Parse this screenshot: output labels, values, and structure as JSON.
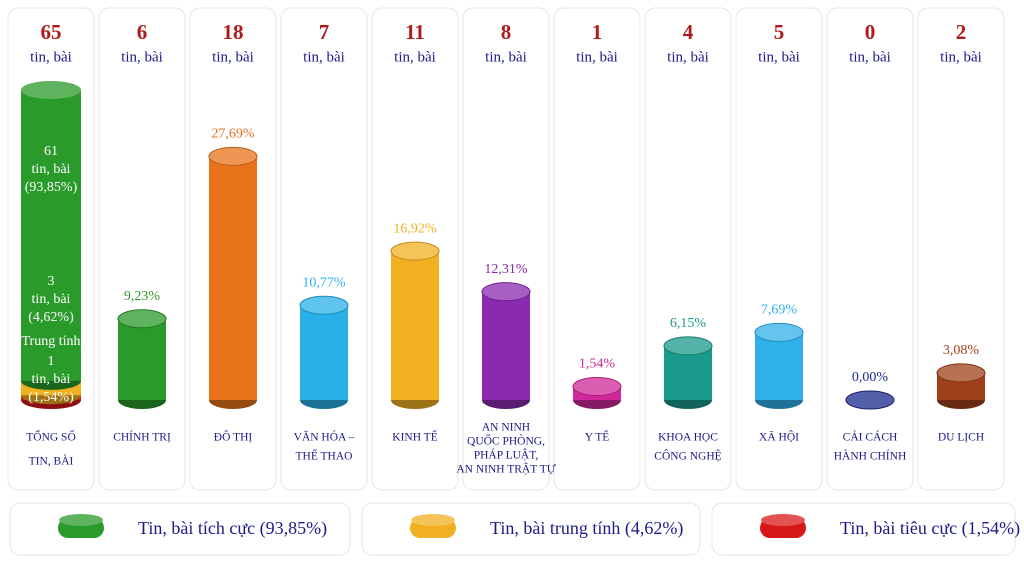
{
  "chart_data": {
    "type": "bar",
    "unit": "tin, bài",
    "total": {
      "label": [
        "TỔNG SỐ",
        "TIN, BÀI"
      ],
      "count": 65,
      "segments": [
        {
          "name": "Tin, bài tích cực (93,85%)",
          "color": "#2a9a2a",
          "count": 61,
          "value": 93.85,
          "value_label": "(93,85%)"
        },
        {
          "name": "Tin, bài trung tính (4,62%)",
          "short_name": "Trung tính",
          "color": "#f0b020",
          "count": 3,
          "value": 4.62,
          "value_label": "(4,62%)"
        },
        {
          "name": "Tin, bài tiêu cực (1,54%)",
          "color": "#d81818",
          "count": 1,
          "value": 1.54,
          "value_label": "(1,54%)"
        }
      ]
    },
    "categories": [
      [
        "CHÍNH TRỊ"
      ],
      [
        "ĐÔ THỊ"
      ],
      [
        "VĂN HÓA –",
        "THỂ THAO"
      ],
      [
        "KINH TẾ"
      ],
      [
        "AN NINH",
        "QUỐC PHÒNG,",
        "PHÁP LUẬT,",
        "AN NINH TRẬT TỰ"
      ],
      [
        "Y TẾ"
      ],
      [
        "KHOA HỌC",
        "CÔNG NGHỆ"
      ],
      [
        "XÃ HỘI"
      ],
      [
        "CẢI CÁCH",
        "HÀNH CHÍNH"
      ],
      [
        "DU LỊCH"
      ]
    ],
    "counts": [
      6,
      18,
      7,
      11,
      8,
      1,
      4,
      5,
      0,
      2
    ],
    "values": [
      9.23,
      27.69,
      10.77,
      16.92,
      12.31,
      1.54,
      6.15,
      7.69,
      0,
      3.08
    ],
    "value_labels": [
      "9,23%",
      "27,69%",
      "10,77%",
      "16,92%",
      "12,31%",
      "1,54%",
      "6,15%",
      "7,69%",
      "0,00%",
      "3,08%"
    ],
    "colors": [
      "#2a9a2a",
      "#e8731a",
      "#2ab0e8",
      "#f0b020",
      "#8a2ab0",
      "#d0289a",
      "#1a9a8a",
      "#30b0e8",
      "#1a2a8a",
      "#a0401a"
    ]
  }
}
